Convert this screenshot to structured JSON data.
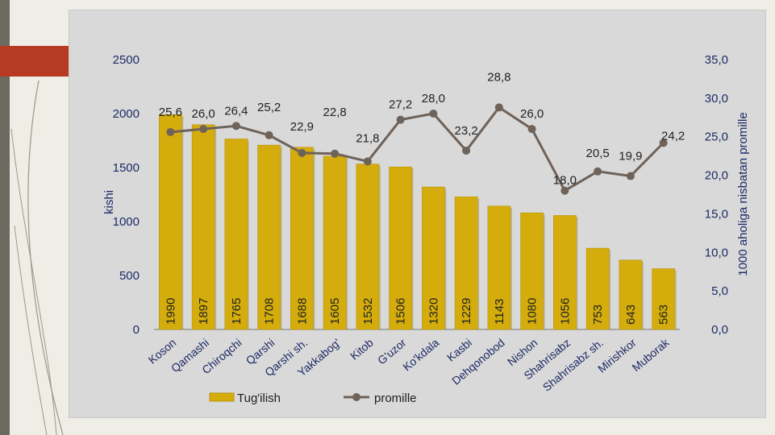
{
  "chart_data": {
    "type": "bar",
    "categories": [
      "Koson",
      "Qamashi",
      "Chiroqchi",
      "Qarshi",
      "Qarshi sh.",
      "Yakkabog'",
      "Kitob",
      "G'uzor",
      "Ko'kdala",
      "Kasbi",
      "Dehqonobod",
      "Nishon",
      "Shahrisabz",
      "Shahrisabz sh.",
      "Mirishkor",
      "Muborak"
    ],
    "series": [
      {
        "name": "Tug'ilish",
        "type": "bar",
        "axis": "left",
        "values": [
          1990,
          1897,
          1765,
          1708,
          1688,
          1605,
          1532,
          1506,
          1320,
          1229,
          1143,
          1080,
          1056,
          753,
          643,
          563
        ],
        "labels": [
          "1990",
          "1897",
          "1765",
          "1708",
          "1688",
          "1605",
          "1532",
          "1506",
          "1320",
          "1229",
          "1143",
          "1080",
          "1056",
          "753",
          "643",
          "563"
        ],
        "color": "#d4ad0c"
      },
      {
        "name": "promille",
        "type": "line",
        "axis": "right",
        "values": [
          25.6,
          26.0,
          26.4,
          25.2,
          22.9,
          22.8,
          21.8,
          27.2,
          28.0,
          23.2,
          28.8,
          26.0,
          18.0,
          20.5,
          19.9,
          24.2
        ],
        "labels": [
          "25,6",
          "26,0",
          "26,4",
          "25,2",
          "22,9",
          "22,8",
          "21,8",
          "27,2",
          "28,0",
          "23,2",
          "28,8",
          "26,0",
          "18,0",
          "20,5",
          "19,9",
          "24,2"
        ],
        "color": "#6e6259"
      }
    ],
    "ylabel": "kishi",
    "y2label": "1000 aholiga nisbatan promille",
    "ylim": [
      0,
      2500
    ],
    "y2lim": [
      0,
      35
    ],
    "yticks": [
      "0",
      "500",
      "1000",
      "1500",
      "2000",
      "2500"
    ],
    "y2ticks": [
      "0,0",
      "5,0",
      "10,0",
      "15,0",
      "20,0",
      "25,0",
      "30,0",
      "35,0"
    ],
    "grid": false,
    "legend": "bottom"
  }
}
